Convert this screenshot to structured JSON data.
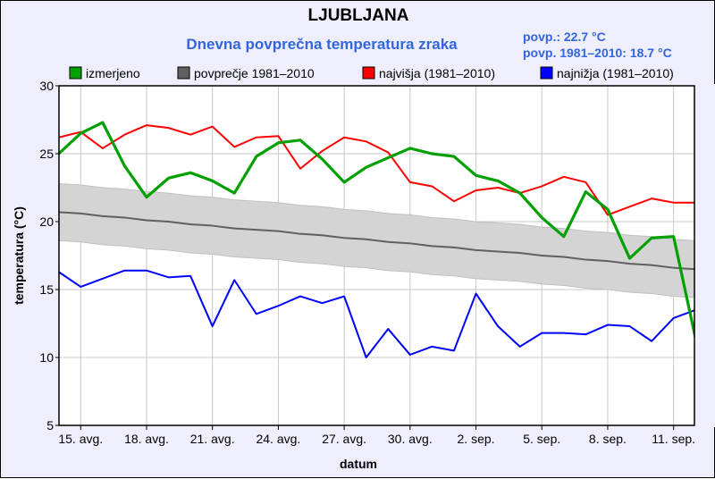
{
  "chart_data": {
    "type": "line",
    "title": "LJUBLJANA",
    "subtitle": "Dnevna povprečna temperatura zraka",
    "stats": [
      "povp.: 22.7 °C",
      "povp. 1981–2010: 18.7 °C"
    ],
    "xlabel": "datum",
    "ylabel": "temperatura (°C)",
    "ylim": [
      5,
      30
    ],
    "yticks": [
      5,
      10,
      15,
      20,
      25,
      30
    ],
    "grid": true,
    "legend_position": "top",
    "dates": [
      "14. avg.",
      "15. avg.",
      "16. avg.",
      "17. avg.",
      "18. avg.",
      "19. avg.",
      "20. avg.",
      "21. avg.",
      "22. avg.",
      "23. avg.",
      "24. avg.",
      "25. avg.",
      "26. avg.",
      "27. avg.",
      "28. avg.",
      "29. avg.",
      "30. avg.",
      "31. avg.",
      "1. sep.",
      "2. sep.",
      "3. sep.",
      "4. sep.",
      "5. sep.",
      "6. sep.",
      "7. sep.",
      "8. sep.",
      "9. sep.",
      "10. sep.",
      "11. sep.",
      "12. sep."
    ],
    "xtick_labels": [
      "15. avg.",
      "18. avg.",
      "21. avg.",
      "24. avg.",
      "27. avg.",
      "30. avg.",
      "2. sep.",
      "5. sep.",
      "8. sep.",
      "11. sep."
    ],
    "series": [
      {
        "name": "izmerjeno",
        "color": "#00a000",
        "values": [
          25.0,
          26.5,
          27.3,
          24.1,
          21.8,
          23.2,
          23.6,
          23.0,
          22.1,
          24.8,
          25.8,
          26.0,
          24.6,
          22.9,
          24.0,
          24.7,
          25.4,
          25.0,
          24.8,
          23.4,
          23.0,
          22.1,
          20.3,
          18.9,
          22.2,
          20.9,
          17.3,
          18.8,
          18.9,
          11.4
        ]
      },
      {
        "name": "povprečje 1981–2010",
        "color": "#606060",
        "values": [
          20.7,
          20.6,
          20.4,
          20.3,
          20.1,
          20.0,
          19.8,
          19.7,
          19.5,
          19.4,
          19.3,
          19.1,
          19.0,
          18.8,
          18.7,
          18.5,
          18.4,
          18.2,
          18.1,
          17.9,
          17.8,
          17.7,
          17.5,
          17.4,
          17.2,
          17.1,
          16.9,
          16.8,
          16.6,
          16.5
        ],
        "band_upper": [
          22.8,
          22.7,
          22.5,
          22.4,
          22.2,
          22.1,
          21.9,
          21.8,
          21.6,
          21.5,
          21.4,
          21.2,
          21.1,
          20.9,
          20.8,
          20.6,
          20.5,
          20.3,
          20.2,
          20.0,
          19.9,
          19.8,
          19.6,
          19.5,
          19.3,
          19.2,
          19.0,
          18.9,
          18.7,
          18.6
        ],
        "band_lower": [
          18.6,
          18.5,
          18.3,
          18.2,
          18.0,
          17.9,
          17.7,
          17.6,
          17.4,
          17.3,
          17.2,
          17.0,
          16.9,
          16.7,
          16.6,
          16.4,
          16.3,
          16.1,
          16.0,
          15.8,
          15.7,
          15.6,
          15.4,
          15.3,
          15.1,
          15.0,
          14.8,
          14.7,
          14.5,
          14.4
        ]
      },
      {
        "name": "najvišja (1981–2010)",
        "color": "#ff0000",
        "values": [
          26.2,
          26.6,
          25.4,
          26.4,
          27.1,
          26.9,
          26.4,
          27.0,
          25.5,
          26.2,
          26.3,
          23.9,
          25.2,
          26.2,
          25.9,
          25.1,
          22.9,
          22.6,
          21.5,
          22.3,
          22.5,
          22.1,
          22.6,
          23.3,
          22.9,
          20.5,
          21.1,
          21.7,
          21.4,
          21.4
        ]
      },
      {
        "name": "najnižja (1981–2010)",
        "color": "#0000ff",
        "values": [
          16.3,
          15.2,
          15.8,
          16.4,
          16.4,
          15.9,
          16.0,
          12.3,
          15.7,
          13.2,
          13.8,
          14.5,
          14.0,
          14.5,
          10.0,
          12.1,
          10.2,
          10.8,
          10.5,
          14.7,
          12.3,
          10.8,
          11.8,
          11.8,
          11.7,
          12.4,
          12.3,
          11.2,
          12.9,
          13.5
        ]
      }
    ],
    "colors": {
      "title": "#000000",
      "subtitle": "#3366dd",
      "background": "#eeeefc",
      "band": "#d4d4d4"
    }
  }
}
